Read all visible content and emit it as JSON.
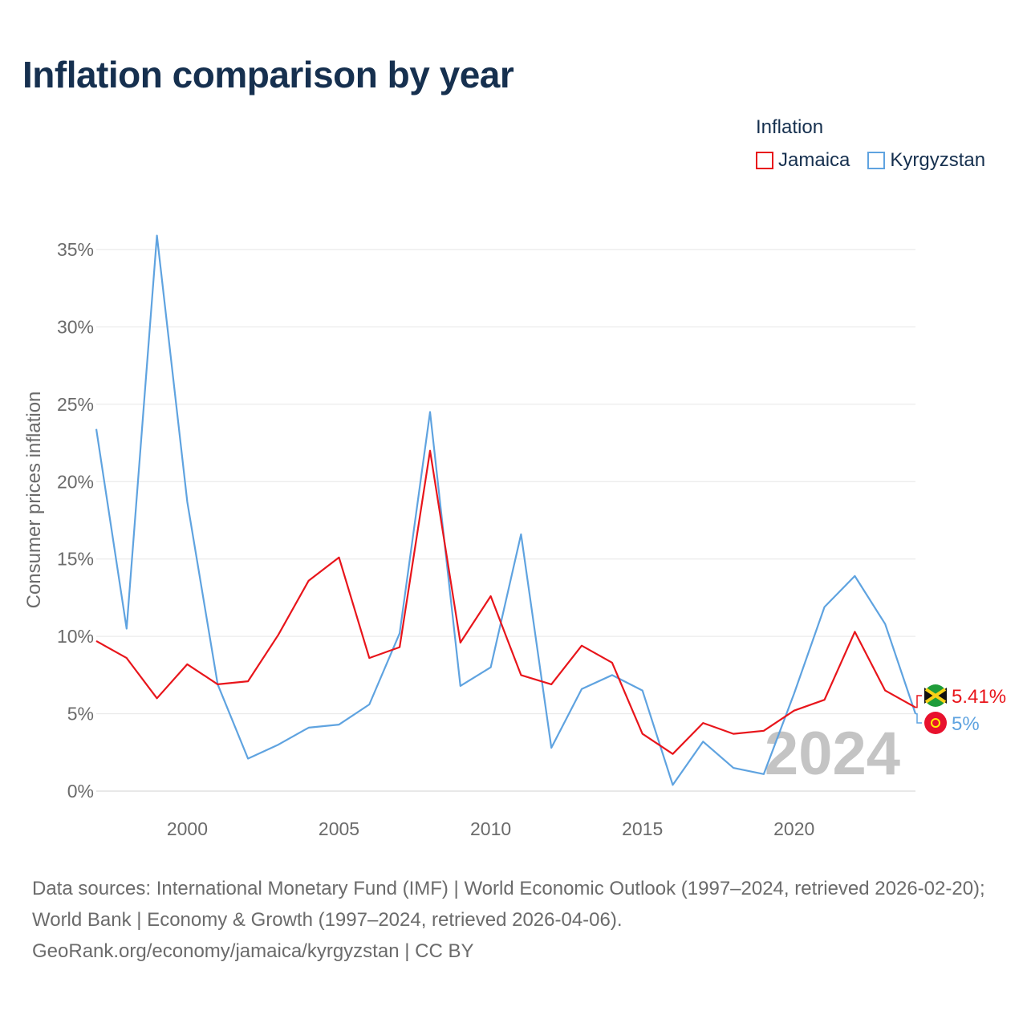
{
  "title": "Inflation comparison by year",
  "legend": {
    "title": "Inflation",
    "items": [
      {
        "name": "Jamaica",
        "color": "#e8151b"
      },
      {
        "name": "Kyrgyzstan",
        "color": "#5fa3e0"
      }
    ]
  },
  "sources": {
    "line1": "Data sources: International Monetary Fund (IMF) | World Economic Outlook (1997–2024, retrieved 2026-02-20); World Bank | Economy & Growth (1997–2024, retrieved 2026-04-06).",
    "line2": "GeoRank.org/economy/jamaica/kyrgyzstan | CC BY"
  },
  "chart_data": {
    "type": "line",
    "title": "Inflation comparison by year",
    "xlabel": "",
    "ylabel": "Consumer prices inflation",
    "xlim": [
      1997,
      2024
    ],
    "ylim": [
      0,
      36
    ],
    "x_ticks": [
      2000,
      2005,
      2010,
      2015,
      2020
    ],
    "y_ticks": [
      0,
      5,
      10,
      15,
      20,
      25,
      30,
      35
    ],
    "y_tick_labels": [
      "0%",
      "5%",
      "10%",
      "15%",
      "20%",
      "25%",
      "30%",
      "35%"
    ],
    "grid": true,
    "watermark_year": "2024",
    "x": [
      1997,
      1998,
      1999,
      2000,
      2001,
      2002,
      2003,
      2004,
      2005,
      2006,
      2007,
      2008,
      2009,
      2010,
      2011,
      2012,
      2013,
      2014,
      2015,
      2016,
      2017,
      2018,
      2019,
      2020,
      2021,
      2022,
      2023,
      2024
    ],
    "series": [
      {
        "name": "Jamaica",
        "color": "#e8151b",
        "end_label": "5.41%",
        "values": [
          9.7,
          8.6,
          6.0,
          8.2,
          6.9,
          7.1,
          10.1,
          13.6,
          15.1,
          8.6,
          9.3,
          22.0,
          9.6,
          12.6,
          7.5,
          6.9,
          9.4,
          8.3,
          3.7,
          2.4,
          4.4,
          3.7,
          3.9,
          5.2,
          5.9,
          10.3,
          6.5,
          5.41
        ]
      },
      {
        "name": "Kyrgyzstan",
        "color": "#5fa3e0",
        "end_label": "5%",
        "values": [
          23.4,
          10.5,
          35.9,
          18.7,
          6.9,
          2.1,
          3.0,
          4.1,
          4.3,
          5.6,
          10.2,
          24.5,
          6.8,
          8.0,
          16.6,
          2.8,
          6.6,
          7.5,
          6.5,
          0.4,
          3.2,
          1.5,
          1.1,
          6.3,
          11.9,
          13.9,
          10.8,
          5.0
        ]
      }
    ]
  }
}
